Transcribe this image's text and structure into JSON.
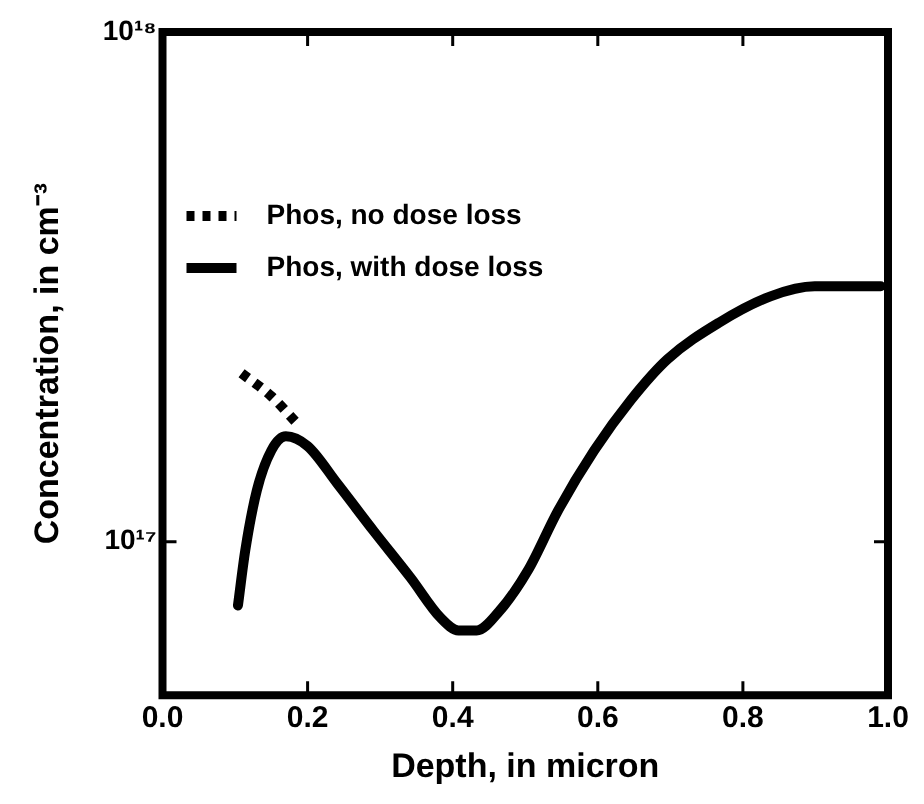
{
  "chart_data": {
    "type": "line",
    "xlabel": "Depth, in micron",
    "ylabel": "Concentration, in cm⁻³",
    "log": "y",
    "xlim": [
      0,
      1
    ],
    "ylim": [
      5e+16,
      1e+18
    ],
    "xticks": [
      {
        "value": 0,
        "label": "0.0"
      },
      {
        "value": 0.2,
        "label": "0.2"
      },
      {
        "value": 0.4,
        "label": "0.4"
      },
      {
        "value": 0.6,
        "label": "0.6"
      },
      {
        "value": 0.8,
        "label": "0.8"
      },
      {
        "value": 1,
        "label": "1.0"
      }
    ],
    "yticks": [
      {
        "value": 1e+17,
        "label": "10¹⁷"
      },
      {
        "value": 1e+18,
        "label": "10¹⁸"
      }
    ],
    "grid": false,
    "legend": "top left",
    "marker": "none",
    "series": [
      {
        "name": "Phos, no dose loss",
        "color": "#000000",
        "line_style": "dotted",
        "x": [
          0.109,
          0.15,
          0.185
        ],
        "values": [
          2.14e+17,
          1.93e+17,
          1.71e+17
        ]
      },
      {
        "name": "Phos, with dose loss",
        "color": "#000000",
        "line_style": "solid",
        "x": [
          0.104,
          0.114,
          0.13,
          0.15,
          0.17,
          0.2,
          0.241,
          0.291,
          0.342,
          0.383,
          0.408,
          0.433,
          0.464,
          0.504,
          0.545,
          0.595,
          0.646,
          0.696,
          0.767,
          0.838,
          0.899,
          0.99
        ],
        "values": [
          7.5e+16,
          9.6e+16,
          1.26e+17,
          1.51e+17,
          1.61e+17,
          1.54e+17,
          1.3e+17,
          1.05e+17,
          8.5e+16,
          7.1e+16,
          6.7e+16,
          6.7e+16,
          7.3e+16,
          8.8e+16,
          1.15e+17,
          1.51e+17,
          1.9e+17,
          2.28e+17,
          2.69e+17,
          3.03e+17,
          3.17e+17,
          3.17e+17
        ]
      }
    ]
  }
}
